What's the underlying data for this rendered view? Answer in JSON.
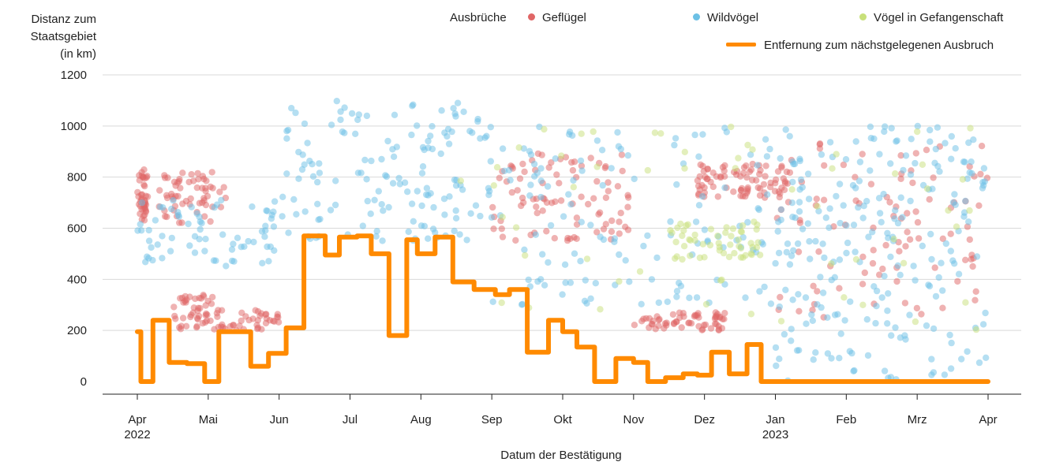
{
  "chart_data": {
    "type": "scatter",
    "y_title_lines": [
      "Distanz zum",
      "Staatsgebiet",
      "(in km)"
    ],
    "xlabel": "Datum der Bestätigung",
    "ylim": [
      0,
      1200
    ],
    "y_ticks": [
      0,
      200,
      400,
      600,
      800,
      1000,
      1200
    ],
    "x_ticks": [
      {
        "label": "Apr",
        "sub": "2022",
        "t": 0
      },
      {
        "label": "Mai",
        "sub": "",
        "t": 1
      },
      {
        "label": "Jun",
        "sub": "",
        "t": 2
      },
      {
        "label": "Jul",
        "sub": "",
        "t": 3
      },
      {
        "label": "Aug",
        "sub": "",
        "t": 4
      },
      {
        "label": "Sep",
        "sub": "",
        "t": 5
      },
      {
        "label": "Okt",
        "sub": "",
        "t": 6
      },
      {
        "label": "Nov",
        "sub": "",
        "t": 7
      },
      {
        "label": "Dez",
        "sub": "",
        "t": 8
      },
      {
        "label": "Jan",
        "sub": "2023",
        "t": 9
      },
      {
        "label": "Feb",
        "sub": "",
        "t": 10
      },
      {
        "label": "Mrz",
        "sub": "",
        "t": 11
      },
      {
        "label": "Apr",
        "sub": "",
        "t": 12
      }
    ],
    "legend": {
      "title": "Ausbrüche",
      "geflugel": "Geflügel",
      "wildvogel": "Wildvögel",
      "gefangenschaft": "Vögel in Gefangenschaft",
      "line": "Entfernung zum nächstgelegenen Ausbruch"
    },
    "colors": {
      "geflugel": "#e06666",
      "wildvogel": "#6cc0e5",
      "gefangenschaft": "#c8e07a",
      "line": "#ff8a00",
      "grid": "#d9d9d9",
      "axis": "#222222"
    },
    "scatter_clusters": [
      {
        "series": "geflugel",
        "t0": 0.0,
        "t1": 0.15,
        "d0": 630,
        "d1": 830,
        "n": 40
      },
      {
        "series": "geflugel",
        "t0": 0.3,
        "t1": 1.25,
        "d0": 620,
        "d1": 820,
        "n": 60
      },
      {
        "series": "geflugel",
        "t0": 0.5,
        "t1": 1.1,
        "d0": 200,
        "d1": 340,
        "n": 45
      },
      {
        "series": "geflugel",
        "t0": 1.1,
        "t1": 2.0,
        "d0": 200,
        "d1": 280,
        "n": 40
      },
      {
        "series": "geflugel",
        "t0": 5.0,
        "t1": 7.0,
        "d0": 550,
        "d1": 900,
        "n": 90
      },
      {
        "series": "geflugel",
        "t0": 7.0,
        "t1": 8.3,
        "d0": 200,
        "d1": 270,
        "n": 60
      },
      {
        "series": "geflugel",
        "t0": 7.9,
        "t1": 9.2,
        "d0": 720,
        "d1": 860,
        "n": 80
      },
      {
        "series": "geflugel",
        "t0": 9.0,
        "t1": 12.0,
        "d0": 250,
        "d1": 950,
        "n": 100
      },
      {
        "series": "wildvogel",
        "t0": 0.0,
        "t1": 2.0,
        "d0": 450,
        "d1": 720,
        "n": 70
      },
      {
        "series": "wildvogel",
        "t0": 2.0,
        "t1": 5.0,
        "d0": 550,
        "d1": 1100,
        "n": 150
      },
      {
        "series": "wildvogel",
        "t0": 5.0,
        "t1": 9.0,
        "d0": 300,
        "d1": 1000,
        "n": 130
      },
      {
        "series": "wildvogel",
        "t0": 9.0,
        "t1": 12.0,
        "d0": 0,
        "d1": 1000,
        "n": 230
      },
      {
        "series": "gefangenschaft",
        "t0": 7.5,
        "t1": 8.8,
        "d0": 480,
        "d1": 620,
        "n": 50
      },
      {
        "series": "gefangenschaft",
        "t0": 4.5,
        "t1": 12.0,
        "d0": 200,
        "d1": 1000,
        "n": 60
      }
    ],
    "nearest_outbreak_line": [
      [
        0.0,
        195
      ],
      [
        0.05,
        0
      ],
      [
        0.22,
        240
      ],
      [
        0.45,
        75
      ],
      [
        0.7,
        70
      ],
      [
        0.95,
        0
      ],
      [
        1.15,
        195
      ],
      [
        1.6,
        60
      ],
      [
        1.85,
        110
      ],
      [
        2.1,
        210
      ],
      [
        2.35,
        570
      ],
      [
        2.65,
        495
      ],
      [
        2.85,
        565
      ],
      [
        3.1,
        570
      ],
      [
        3.3,
        500
      ],
      [
        3.55,
        180
      ],
      [
        3.8,
        555
      ],
      [
        3.95,
        500
      ],
      [
        4.2,
        565
      ],
      [
        4.45,
        390
      ],
      [
        4.75,
        360
      ],
      [
        5.05,
        340
      ],
      [
        5.25,
        360
      ],
      [
        5.5,
        115
      ],
      [
        5.8,
        240
      ],
      [
        6.0,
        195
      ],
      [
        6.2,
        135
      ],
      [
        6.45,
        0
      ],
      [
        6.75,
        90
      ],
      [
        7.0,
        75
      ],
      [
        7.2,
        0
      ],
      [
        7.45,
        15
      ],
      [
        7.7,
        30
      ],
      [
        7.9,
        25
      ],
      [
        8.1,
        115
      ],
      [
        8.35,
        30
      ],
      [
        8.6,
        145
      ],
      [
        8.8,
        0
      ],
      [
        12.0,
        0
      ]
    ]
  }
}
